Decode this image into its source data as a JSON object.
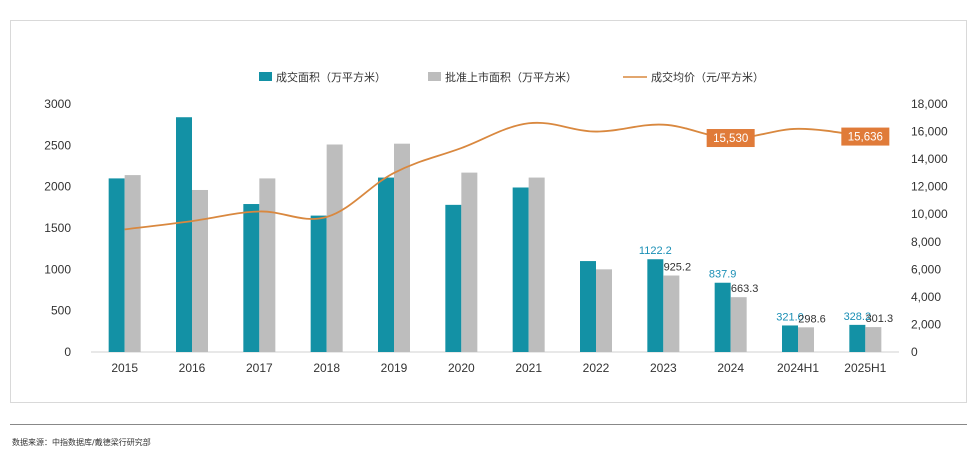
{
  "colors": {
    "area_bar": "#1391a5",
    "approved_bar": "#bdbdbd",
    "price_line": "#d9883f",
    "highlight_box": "#e07b39",
    "axis_text": "#333333",
    "area_label": "#1a8fb5",
    "approved_label": "#333333"
  },
  "chart_data": {
    "type": "bar",
    "categories": [
      "2015",
      "2016",
      "2017",
      "2018",
      "2019",
      "2020",
      "2021",
      "2022",
      "2023",
      "2024",
      "2024H1",
      "2025H1"
    ],
    "series": [
      {
        "name": "成交面积（万平方米）",
        "kind": "bar",
        "axis": "left",
        "values": [
          2100,
          2840,
          1790,
          1650,
          2110,
          1780,
          1990,
          1100,
          1122.2,
          837.9,
          321.0,
          328.2
        ],
        "labels": [
          "",
          "",
          "",
          "",
          "",
          "",
          "",
          "",
          "1122.2",
          "837.9",
          "321.0",
          "328.2"
        ]
      },
      {
        "name": "批准上市面积（万平方米）",
        "kind": "bar",
        "axis": "left",
        "values": [
          2140,
          1960,
          2100,
          2510,
          2520,
          2170,
          2110,
          1000,
          925.2,
          663.3,
          298.6,
          301.3
        ],
        "labels": [
          "",
          "",
          "",
          "",
          "",
          "",
          "",
          "",
          "925.2",
          "663.3",
          "298.6",
          "301.3"
        ]
      },
      {
        "name": "成交均价（元/平方米）",
        "kind": "line",
        "axis": "right",
        "values": [
          8900,
          9500,
          10200,
          9800,
          13000,
          14800,
          16600,
          16000,
          16500,
          15530,
          16200,
          15636
        ],
        "labels": [
          "",
          "",
          "",
          "",
          "",
          "",
          "",
          "",
          "",
          "15,530",
          "",
          "15,636"
        ]
      }
    ],
    "ylim_left": [
      0,
      3000
    ],
    "yticks_left": [
      "0",
      "500",
      "1000",
      "1500",
      "2000",
      "2500",
      "3000"
    ],
    "ylim_right": [
      0,
      18000
    ],
    "yticks_right": [
      "0",
      "2,000",
      "4,000",
      "6,000",
      "8,000",
      "10,000",
      "12,000",
      "14,000",
      "16,000",
      "18,000"
    ],
    "legend_position": "top-center",
    "grid": false,
    "xlabel": "",
    "ylabel": ""
  },
  "footer": {
    "source": "数据来源：中指数据库/戴德梁行研究部"
  }
}
